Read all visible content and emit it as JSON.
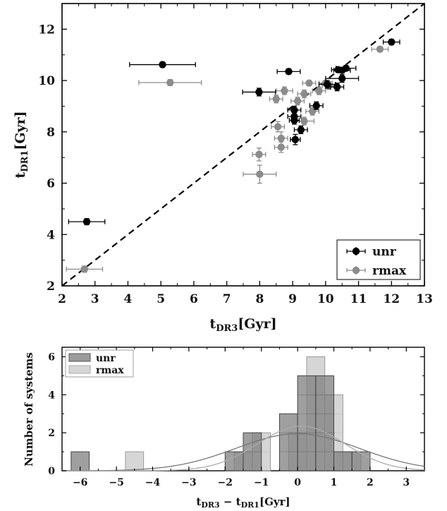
{
  "chart_data": [
    {
      "type": "scatter",
      "xlabel": "t_DR3[Gyr]",
      "xlabel_main": "t",
      "xlabel_sub": "DR3",
      "xlabel_unit": "[Gyr]",
      "ylabel": "t_DR1[Gyr]",
      "ylabel_main": "t",
      "ylabel_sub": "DR1",
      "ylabel_unit": "[Gyr]",
      "xlim": [
        2,
        13
      ],
      "ylim": [
        2,
        13
      ],
      "xticks": [
        "2",
        "3",
        "4",
        "5",
        "6",
        "7",
        "8",
        "9",
        "10",
        "11",
        "12",
        "13"
      ],
      "yticks": [
        "2",
        "4",
        "6",
        "8",
        "10",
        "12"
      ],
      "reference_line": "y = x (dashed)",
      "legend_position": "bottom-right",
      "series": [
        {
          "name": "unr",
          "color": "#000000",
          "points": [
            {
              "x": 2.75,
              "y": 4.5,
              "xerr": 0.55,
              "yerr": 0.12
            },
            {
              "x": 5.05,
              "y": 10.62,
              "xerr": 1.0,
              "yerr": 0.1
            },
            {
              "x": 7.98,
              "y": 9.55,
              "xerr": 0.5,
              "yerr": 0.15
            },
            {
              "x": 8.88,
              "y": 10.35,
              "xerr": 0.35,
              "yerr": 0.1
            },
            {
              "x": 9.05,
              "y": 8.85,
              "xerr": 0.2,
              "yerr": 0.15
            },
            {
              "x": 9.05,
              "y": 8.6,
              "xerr": 0.2,
              "yerr": 0.15
            },
            {
              "x": 9.05,
              "y": 8.45,
              "xerr": 0.15,
              "yerr": 0.15
            },
            {
              "x": 9.08,
              "y": 7.7,
              "xerr": 0.15,
              "yerr": 0.2
            },
            {
              "x": 9.25,
              "y": 8.08,
              "xerr": 0.2,
              "yerr": 0.15
            },
            {
              "x": 9.72,
              "y": 9.02,
              "xerr": 0.2,
              "yerr": 0.15
            },
            {
              "x": 10.05,
              "y": 9.85,
              "xerr": 0.25,
              "yerr": 0.15
            },
            {
              "x": 10.35,
              "y": 9.75,
              "xerr": 0.2,
              "yerr": 0.15
            },
            {
              "x": 10.38,
              "y": 10.42,
              "xerr": 0.2,
              "yerr": 0.1
            },
            {
              "x": 10.5,
              "y": 10.4,
              "xerr": 0.25,
              "yerr": 0.1
            },
            {
              "x": 10.5,
              "y": 10.08,
              "xerr": 0.5,
              "yerr": 0.15
            },
            {
              "x": 10.62,
              "y": 10.48,
              "xerr": 0.3,
              "yerr": 0.1
            },
            {
              "x": 12.0,
              "y": 11.5,
              "xerr": 0.25,
              "yerr": 0.1
            }
          ]
        },
        {
          "name": "rmax",
          "color": "#8c8c8c",
          "points": [
            {
              "x": 2.68,
              "y": 2.65,
              "xerr": 0.55,
              "yerr": 0.12
            },
            {
              "x": 5.28,
              "y": 9.92,
              "xerr": 0.95,
              "yerr": 0.12
            },
            {
              "x": 7.98,
              "y": 7.12,
              "xerr": 0.2,
              "yerr": 0.25
            },
            {
              "x": 8.0,
              "y": 6.35,
              "xerr": 0.5,
              "yerr": 0.35
            },
            {
              "x": 8.5,
              "y": 9.28,
              "xerr": 0.2,
              "yerr": 0.15
            },
            {
              "x": 8.55,
              "y": 8.2,
              "xerr": 0.2,
              "yerr": 0.2
            },
            {
              "x": 8.65,
              "y": 7.75,
              "xerr": 0.2,
              "yerr": 0.25
            },
            {
              "x": 8.65,
              "y": 7.4,
              "xerr": 0.2,
              "yerr": 0.2
            },
            {
              "x": 8.75,
              "y": 9.6,
              "xerr": 0.25,
              "yerr": 0.15
            },
            {
              "x": 9.15,
              "y": 9.2,
              "xerr": 0.2,
              "yerr": 0.15
            },
            {
              "x": 9.35,
              "y": 9.48,
              "xerr": 0.2,
              "yerr": 0.15
            },
            {
              "x": 9.35,
              "y": 8.42,
              "xerr": 0.3,
              "yerr": 0.15
            },
            {
              "x": 9.5,
              "y": 9.9,
              "xerr": 0.2,
              "yerr": 0.1
            },
            {
              "x": 9.6,
              "y": 8.8,
              "xerr": 0.2,
              "yerr": 0.15
            },
            {
              "x": 9.8,
              "y": 9.6,
              "xerr": 0.2,
              "yerr": 0.15
            },
            {
              "x": 10.0,
              "y": 9.9,
              "xerr": 0.2,
              "yerr": 0.1
            },
            {
              "x": 10.1,
              "y": 9.8,
              "xerr": 0.2,
              "yerr": 0.15
            },
            {
              "x": 11.65,
              "y": 11.22,
              "xerr": 0.25,
              "yerr": 0.1
            }
          ]
        }
      ]
    },
    {
      "type": "bar",
      "subtype": "histogram",
      "xlabel": "t_DR3 - t_DR1[Gyr]",
      "ylabel": "Number of systems",
      "xlim": [
        -6.5,
        3.5
      ],
      "ylim": [
        0,
        6.5
      ],
      "xticks": [
        "−6",
        "−5",
        "−4",
        "−3",
        "−2",
        "−1",
        "0",
        "1",
        "2",
        "3"
      ],
      "yticks": [
        "0",
        "2",
        "4",
        "6"
      ],
      "legend_position": "top-left",
      "bin_width": 0.5,
      "series": [
        {
          "name": "unr",
          "color": "#7a7a7a",
          "bins": [
            {
              "left": -6.25,
              "count": 1
            },
            {
              "left": -2.0,
              "count": 1
            },
            {
              "left": -1.5,
              "count": 2
            },
            {
              "left": -0.5,
              "count": 3
            },
            {
              "left": 0.0,
              "count": 5
            },
            {
              "left": 0.5,
              "count": 5
            },
            {
              "left": 1.0,
              "count": 1
            },
            {
              "left": 1.5,
              "count": 1
            }
          ],
          "gaussian": {
            "mean": 0.0,
            "sigma": 1.7,
            "peak": 1.95
          }
        },
        {
          "name": "rmax",
          "color": "#c8c8c8",
          "bins": [
            {
              "left": -4.75,
              "count": 1
            },
            {
              "left": -1.75,
              "count": 1
            },
            {
              "left": -1.25,
              "count": 2
            },
            {
              "left": -0.25,
              "count": 2
            },
            {
              "left": 0.25,
              "count": 6
            },
            {
              "left": 0.75,
              "count": 4
            },
            {
              "left": 1.25,
              "count": 1
            }
          ],
          "gaussian": {
            "mean": 0.1,
            "sigma": 1.2,
            "peak": 2.35
          }
        }
      ]
    }
  ]
}
